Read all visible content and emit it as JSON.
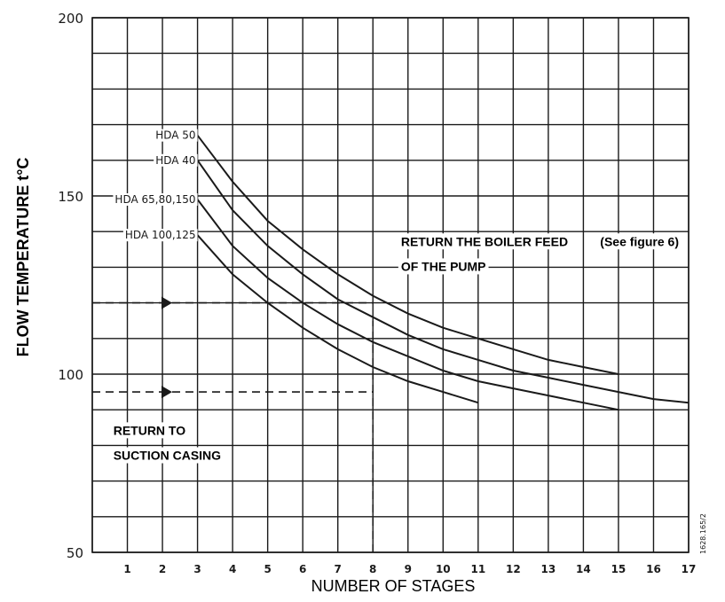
{
  "chart_data": {
    "type": "line",
    "title": "",
    "xlabel": "NUMBER OF STAGES",
    "ylabel": "FLOW TEMPERATURE t°C",
    "xlim": [
      0,
      17
    ],
    "ylim": [
      50,
      200
    ],
    "x_ticks": [
      "1",
      "2",
      "3",
      "4",
      "5",
      "6",
      "7",
      "8",
      "9",
      "10",
      "11",
      "12",
      "13",
      "14",
      "15",
      "16",
      "17"
    ],
    "y_ticks": [
      "50",
      "100",
      "150",
      "200"
    ],
    "grid": true,
    "series": [
      {
        "name": "HDA 50",
        "x": [
          3,
          4,
          5,
          6,
          7,
          8,
          9,
          10,
          11,
          12,
          13,
          14,
          15
        ],
        "y": [
          167,
          154,
          143,
          135,
          128,
          122,
          117,
          113,
          110,
          107,
          104,
          102,
          100
        ]
      },
      {
        "name": "HDA 40",
        "x": [
          3,
          4,
          5,
          6,
          7,
          8,
          9,
          10,
          11,
          12,
          13,
          14,
          15,
          16,
          17
        ],
        "y": [
          160,
          146,
          136,
          128,
          121,
          116,
          111,
          107,
          104,
          101,
          99,
          97,
          95,
          93,
          92
        ]
      },
      {
        "name": "HDA 65,80,150",
        "x": [
          3,
          4,
          5,
          6,
          7,
          8,
          9,
          10,
          11,
          12,
          13,
          14,
          15
        ],
        "y": [
          149,
          136,
          127,
          120,
          114,
          109,
          105,
          101,
          98,
          96,
          94,
          92,
          90
        ]
      },
      {
        "name": "HDA 100,125",
        "x": [
          3,
          4,
          5,
          6,
          7,
          8,
          9,
          10,
          11
        ],
        "y": [
          139,
          128,
          120,
          113,
          107,
          102,
          98,
          95,
          92
        ]
      }
    ],
    "reference_lines": [
      {
        "y": 120,
        "x_from": 0,
        "x_to": 8
      },
      {
        "y": 95,
        "x_from": 0,
        "x_to": 8
      },
      {
        "x": 8,
        "y_from": 50,
        "y_to": 115
      }
    ],
    "annotations": [
      {
        "text": "RETURN THE BOILER FEED",
        "x": 8.8,
        "y": 136
      },
      {
        "text": "OF THE PUMP",
        "x": 8.8,
        "y": 129
      },
      {
        "text": "(See figure 6)",
        "x": 15.6,
        "y": 136
      },
      {
        "text": "RETURN TO",
        "x": 0.6,
        "y": 83
      },
      {
        "text": "SUCTION CASING",
        "x": 0.6,
        "y": 76
      }
    ],
    "code_label": "1628.165/2"
  }
}
